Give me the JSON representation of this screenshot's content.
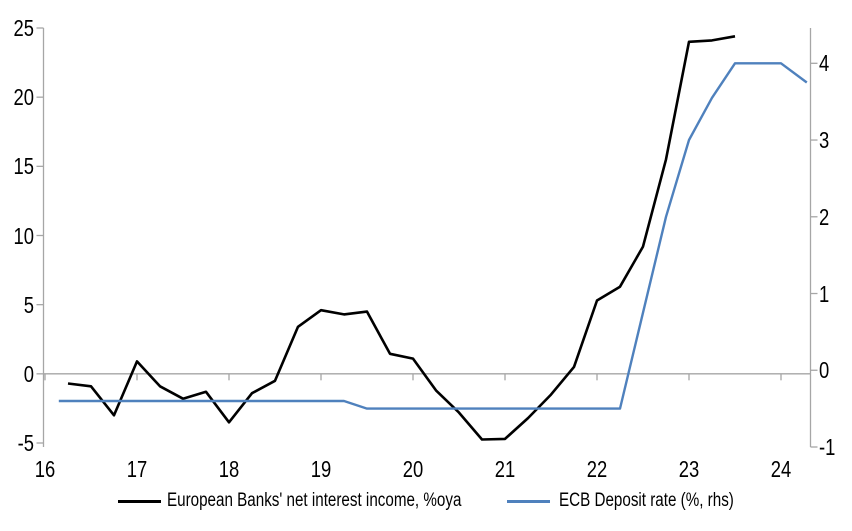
{
  "chart_data": {
    "type": "line",
    "title": "",
    "legend_position": "bottom",
    "background_color": "#ffffff",
    "axis_color": "#a6a6a6",
    "zero_line": true,
    "x_axis": {
      "min": 16,
      "max": 24.33,
      "ticks": [
        16,
        17,
        18,
        19,
        20,
        21,
        22,
        23,
        24
      ]
    },
    "y_left_axis": {
      "min": -5,
      "max": 25,
      "ticks": [
        -5,
        0,
        5,
        10,
        15,
        20,
        25
      ]
    },
    "y_right_axis": {
      "min": -1,
      "max": 4.46,
      "ticks": [
        -1,
        0,
        1,
        2,
        3,
        4
      ]
    },
    "series": [
      {
        "name": "European Banks' net interest income, %oya",
        "axis": "left",
        "color": "#000000",
        "stroke_width": 2.6,
        "points": [
          [
            16.25,
            -0.7
          ],
          [
            16.5,
            -0.9
          ],
          [
            16.75,
            -3.0
          ],
          [
            17.0,
            0.9
          ],
          [
            17.25,
            -0.9
          ],
          [
            17.5,
            -1.8
          ],
          [
            17.75,
            -1.3
          ],
          [
            18.0,
            -3.5
          ],
          [
            18.25,
            -1.4
          ],
          [
            18.5,
            -0.5
          ],
          [
            18.75,
            3.4
          ],
          [
            19.0,
            4.6
          ],
          [
            19.25,
            4.3
          ],
          [
            19.5,
            4.5
          ],
          [
            19.75,
            1.45
          ],
          [
            20.0,
            1.1
          ],
          [
            20.25,
            -1.2
          ],
          [
            20.5,
            -2.8
          ],
          [
            20.75,
            -4.75
          ],
          [
            21.0,
            -4.7
          ],
          [
            21.25,
            -3.2
          ],
          [
            21.5,
            -1.5
          ],
          [
            21.75,
            0.5
          ],
          [
            22.0,
            5.3
          ],
          [
            22.25,
            6.3
          ],
          [
            22.5,
            9.2
          ],
          [
            22.75,
            15.5
          ],
          [
            23.0,
            24.0
          ],
          [
            23.25,
            24.1
          ],
          [
            23.5,
            24.4
          ]
        ]
      },
      {
        "name": "ECB Deposit rate (%, rhs)",
        "axis": "right",
        "color": "#4f81bd",
        "stroke_width": 2.4,
        "points": [
          [
            16.15,
            -0.4
          ],
          [
            19.25,
            -0.4
          ],
          [
            19.5,
            -0.5
          ],
          [
            22.25,
            -0.5
          ],
          [
            22.5,
            0.75
          ],
          [
            22.75,
            2.0
          ],
          [
            23.0,
            3.0
          ],
          [
            23.25,
            3.55
          ],
          [
            23.5,
            4.0
          ],
          [
            23.75,
            4.0
          ],
          [
            24.0,
            4.0
          ],
          [
            24.28,
            3.75
          ]
        ]
      }
    ]
  }
}
